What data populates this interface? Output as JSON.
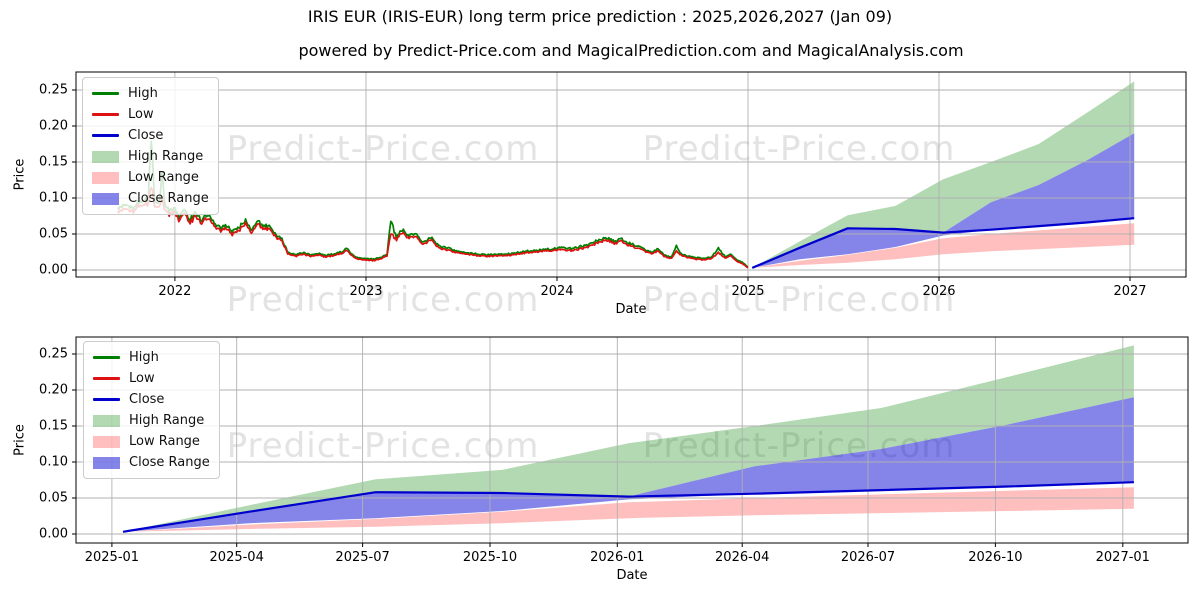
{
  "title": "IRIS EUR (IRIS-EUR) long term price prediction : 2025,2026,2027 (Jan 09)",
  "subtitle": "powered by Predict-Price.com and MagicalPrediction.com and MagicalAnalysis.com",
  "watermark_text": "Predict-Price.com",
  "colors": {
    "high_line": "#008000",
    "low_line": "#dd1111",
    "close_line": "#0000cd",
    "high_range_fill": "rgba(0,128,0,0.30)",
    "low_range_fill": "rgba(255,0,0,0.25)",
    "close_range_fill": "rgba(0,0,210,0.48)",
    "grid": "#b0b0b0",
    "spine": "#000000",
    "watermark": "#e3e3e3"
  },
  "legend": {
    "items": [
      {
        "label": "High",
        "type": "line",
        "color_key": "high_line"
      },
      {
        "label": "Low",
        "type": "line",
        "color_key": "low_line"
      },
      {
        "label": "Close",
        "type": "line",
        "color_key": "close_line"
      },
      {
        "label": "High Range",
        "type": "patch",
        "color_key": "high_range_fill"
      },
      {
        "label": "Low Range",
        "type": "patch",
        "color_key": "low_range_fill"
      },
      {
        "label": "Close Range",
        "type": "patch",
        "color_key": "close_range_fill"
      }
    ]
  },
  "chart_data": [
    {
      "type": "line",
      "title": "",
      "xlabel": "Date",
      "ylabel": "Price",
      "xtick_labels": [
        "2022",
        "2023",
        "2024",
        "2025",
        "2026",
        "2027"
      ],
      "xtick_values": [
        2022,
        2023,
        2024,
        2025,
        2026,
        2027
      ],
      "ytick_labels": [
        "0.00",
        "0.05",
        "0.10",
        "0.15",
        "0.20",
        "0.25"
      ],
      "ytick_values": [
        0,
        0.05,
        0.1,
        0.15,
        0.2,
        0.25
      ],
      "xlim": [
        2021.482,
        2027.293
      ],
      "ylim": [
        -0.0097,
        0.275
      ],
      "grid": true,
      "legend_position": "upper left",
      "historical": {
        "x": [
          2021.7,
          2021.74,
          2021.77,
          2021.8,
          2021.83,
          2021.86,
          2021.876,
          2021.895,
          2021.92,
          2021.932,
          2021.95,
          2021.97,
          2022.0,
          2022.02,
          2022.05,
          2022.08,
          2022.11,
          2022.14,
          2022.17,
          2022.2,
          2022.24,
          2022.27,
          2022.3,
          2022.34,
          2022.37,
          2022.4,
          2022.43,
          2022.46,
          2022.5,
          2022.53,
          2022.56,
          2022.59,
          2022.63,
          2022.67,
          2022.71,
          2022.75,
          2022.79,
          2022.83,
          2022.87,
          2022.9,
          2022.93,
          2022.96,
          2023.0,
          2023.04,
          2023.08,
          2023.11,
          2023.13,
          2023.16,
          2023.19,
          2023.22,
          2023.26,
          2023.3,
          2023.34,
          2023.38,
          2023.43,
          2023.48,
          2023.53,
          2023.58,
          2023.64,
          2023.7,
          2023.77,
          2023.84,
          2023.91,
          2023.97,
          2024.03,
          2024.08,
          2024.13,
          2024.18,
          2024.22,
          2024.26,
          2024.3,
          2024.34,
          2024.38,
          2024.42,
          2024.46,
          2024.5,
          2024.53,
          2024.56,
          2024.6,
          2024.625,
          2024.65,
          2024.69,
          2024.73,
          2024.77,
          2024.81,
          2024.845,
          2024.88,
          2024.91,
          2024.94,
          2024.97,
          2025.0
        ],
        "high": [
          0.086,
          0.094,
          0.085,
          0.091,
          0.099,
          0.096,
          0.185,
          0.092,
          0.096,
          0.132,
          0.088,
          0.081,
          0.086,
          0.075,
          0.082,
          0.07,
          0.08,
          0.07,
          0.078,
          0.066,
          0.058,
          0.062,
          0.053,
          0.06,
          0.069,
          0.054,
          0.068,
          0.062,
          0.06,
          0.048,
          0.044,
          0.025,
          0.021,
          0.024,
          0.021,
          0.023,
          0.02,
          0.022,
          0.025,
          0.03,
          0.021,
          0.017,
          0.016,
          0.015,
          0.018,
          0.022,
          0.068,
          0.045,
          0.056,
          0.047,
          0.051,
          0.039,
          0.045,
          0.034,
          0.03,
          0.026,
          0.024,
          0.022,
          0.021,
          0.022,
          0.023,
          0.026,
          0.028,
          0.029,
          0.031,
          0.03,
          0.033,
          0.037,
          0.042,
          0.044,
          0.04,
          0.043,
          0.037,
          0.033,
          0.028,
          0.024,
          0.03,
          0.021,
          0.018,
          0.033,
          0.023,
          0.019,
          0.017,
          0.016,
          0.018,
          0.03,
          0.019,
          0.021,
          0.014,
          0.011,
          0.004
        ],
        "low": [
          0.081,
          0.088,
          0.08,
          0.086,
          0.093,
          0.09,
          0.118,
          0.086,
          0.09,
          0.096,
          0.083,
          0.076,
          0.081,
          0.07,
          0.077,
          0.066,
          0.075,
          0.066,
          0.073,
          0.062,
          0.054,
          0.058,
          0.049,
          0.056,
          0.065,
          0.05,
          0.064,
          0.058,
          0.056,
          0.045,
          0.041,
          0.023,
          0.019,
          0.022,
          0.019,
          0.021,
          0.018,
          0.02,
          0.023,
          0.027,
          0.019,
          0.015,
          0.014,
          0.013,
          0.016,
          0.02,
          0.05,
          0.042,
          0.052,
          0.044,
          0.047,
          0.036,
          0.042,
          0.031,
          0.027,
          0.024,
          0.022,
          0.02,
          0.019,
          0.02,
          0.021,
          0.024,
          0.026,
          0.027,
          0.028,
          0.027,
          0.03,
          0.034,
          0.039,
          0.041,
          0.037,
          0.04,
          0.034,
          0.03,
          0.026,
          0.022,
          0.027,
          0.019,
          0.016,
          0.026,
          0.021,
          0.017,
          0.015,
          0.014,
          0.016,
          0.024,
          0.017,
          0.019,
          0.012,
          0.009,
          0.003
        ]
      },
      "prediction": {
        "x_labels": [
          "2025-01",
          "2025-04",
          "2025-07",
          "2025-10",
          "2026-01",
          "2026-04",
          "2026-07",
          "2026-10",
          "2027-01"
        ],
        "x_years": [
          2025.022,
          2025.272,
          2025.522,
          2025.772,
          2026.022,
          2026.272,
          2026.522,
          2026.772,
          2027.022
        ],
        "close": [
          0.003,
          0.031,
          0.058,
          0.057,
          0.052,
          0.056,
          0.061,
          0.066,
          0.072
        ],
        "close_range_top": [
          0.003,
          0.031,
          0.058,
          0.057,
          0.052,
          0.094,
          0.118,
          0.152,
          0.19
        ],
        "close_range_bottom": [
          0.003,
          0.015,
          0.022,
          0.032,
          0.048,
          0.056,
          0.061,
          0.066,
          0.072
        ],
        "high_range_top": [
          0.003,
          0.04,
          0.076,
          0.089,
          0.126,
          0.15,
          0.175,
          0.218,
          0.262
        ],
        "low_range_top": [
          0.003,
          0.013,
          0.021,
          0.031,
          0.044,
          0.05,
          0.055,
          0.06,
          0.065
        ],
        "low_range_bottom": [
          0.003,
          0.007,
          0.01,
          0.015,
          0.022,
          0.026,
          0.029,
          0.032,
          0.035
        ]
      }
    },
    {
      "type": "line",
      "title": "",
      "xlabel": "Date",
      "ylabel": "Price",
      "xtick_labels": [
        "2025-01",
        "2025-04",
        "2025-07",
        "2025-10",
        "2026-01",
        "2026-04",
        "2026-07",
        "2026-10",
        "2027-01"
      ],
      "xtick_values": [
        2025.0,
        2025.247,
        2025.496,
        2025.748,
        2026.0,
        2026.247,
        2026.496,
        2026.748,
        2027.0
      ],
      "ytick_labels": [
        "0.00",
        "0.05",
        "0.10",
        "0.15",
        "0.20",
        "0.25"
      ],
      "ytick_values": [
        0,
        0.05,
        0.1,
        0.15,
        0.2,
        0.25
      ],
      "xlim": [
        2024.929,
        2027.129
      ],
      "ylim": [
        -0.0125,
        0.2736
      ],
      "grid": true,
      "legend_position": "upper left",
      "prediction": {
        "x_labels": [
          "2025-01",
          "2025-04",
          "2025-07",
          "2025-10",
          "2026-01",
          "2026-04",
          "2026-07",
          "2026-10",
          "2027-01"
        ],
        "x_years": [
          2025.022,
          2025.272,
          2025.522,
          2025.772,
          2026.022,
          2026.272,
          2026.522,
          2026.772,
          2027.022
        ],
        "close": [
          0.003,
          0.031,
          0.058,
          0.057,
          0.052,
          0.056,
          0.061,
          0.066,
          0.072
        ],
        "close_range_top": [
          0.003,
          0.031,
          0.058,
          0.057,
          0.052,
          0.094,
          0.118,
          0.152,
          0.19
        ],
        "close_range_bottom": [
          0.003,
          0.015,
          0.022,
          0.032,
          0.048,
          0.056,
          0.061,
          0.066,
          0.072
        ],
        "high_range_top": [
          0.003,
          0.04,
          0.076,
          0.089,
          0.126,
          0.15,
          0.175,
          0.218,
          0.262
        ],
        "low_range_top": [
          0.003,
          0.013,
          0.021,
          0.031,
          0.044,
          0.05,
          0.055,
          0.06,
          0.065
        ],
        "low_range_bottom": [
          0.003,
          0.007,
          0.01,
          0.015,
          0.022,
          0.026,
          0.029,
          0.032,
          0.035
        ]
      }
    }
  ]
}
